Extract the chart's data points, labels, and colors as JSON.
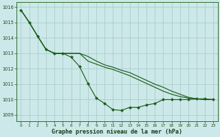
{
  "background_color": "#cce8e8",
  "grid_color": "#aacccc",
  "line_color": "#1a5c1a",
  "xlabel": "Graphe pression niveau de la mer (hPa)",
  "xlim": [
    -0.5,
    23.5
  ],
  "ylim": [
    1008.6,
    1016.3
  ],
  "yticks": [
    1009,
    1010,
    1011,
    1012,
    1013,
    1014,
    1015,
    1016
  ],
  "xticks": [
    0,
    1,
    2,
    3,
    4,
    5,
    6,
    7,
    8,
    9,
    10,
    11,
    12,
    13,
    14,
    15,
    16,
    17,
    18,
    19,
    20,
    21,
    22,
    23
  ],
  "s1": [
    1015.8,
    1015.0,
    1014.1,
    1013.25,
    1013.0,
    1013.0,
    1013.0,
    1013.0,
    1012.8,
    1012.5,
    1012.25,
    1012.1,
    1011.9,
    1011.75,
    1011.5,
    1011.25,
    1011.0,
    1010.8,
    1010.55,
    1010.35,
    1010.15,
    1010.05,
    1010.0,
    1010.0
  ],
  "s2": [
    1015.8,
    1015.0,
    1014.1,
    1013.25,
    1013.0,
    1013.0,
    1013.0,
    1013.0,
    1012.5,
    1012.3,
    1012.1,
    1011.95,
    1011.75,
    1011.55,
    1011.3,
    1011.05,
    1010.8,
    1010.55,
    1010.35,
    1010.2,
    1010.1,
    1010.05,
    1010.0,
    1010.0
  ],
  "s3": [
    1015.8,
    1015.0,
    1014.1,
    1013.25,
    1013.0,
    1013.0,
    1012.75,
    1012.15,
    1011.05,
    1010.1,
    1009.75,
    1009.35,
    1009.3,
    1009.5,
    1009.5,
    1009.65,
    1009.75,
    1010.0,
    1010.0,
    1010.0,
    1010.0,
    1010.05,
    1010.05,
    1010.0
  ]
}
